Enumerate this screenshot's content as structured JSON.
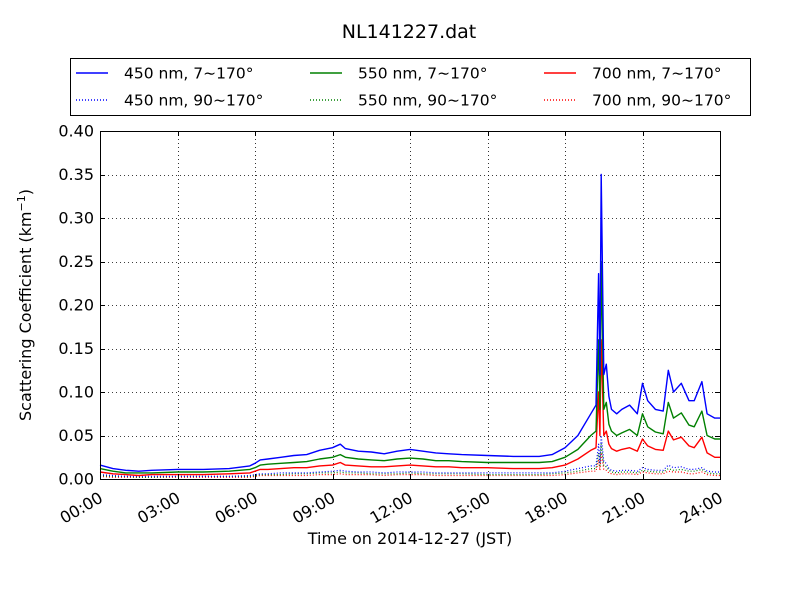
{
  "chart_data": {
    "type": "line",
    "title": "NL141227.dat",
    "xlabel": "Time on 2014-12-27 (JST)",
    "ylabel": "Scattering Coefficient (km",
    "ylabel_sup": "−1",
    "ylabel_close": ")",
    "xlim": [
      0,
      24
    ],
    "ylim": [
      0,
      0.4
    ],
    "grid": true,
    "legend_position": "top",
    "x_ticks": [
      {
        "value": 0,
        "label": "00:00"
      },
      {
        "value": 3,
        "label": "03:00"
      },
      {
        "value": 6,
        "label": "06:00"
      },
      {
        "value": 9,
        "label": "09:00"
      },
      {
        "value": 12,
        "label": "12:00"
      },
      {
        "value": 15,
        "label": "15:00"
      },
      {
        "value": 18,
        "label": "18:00"
      },
      {
        "value": 21,
        "label": "21:00"
      },
      {
        "value": 24,
        "label": "24:00"
      }
    ],
    "y_ticks": [
      {
        "value": 0,
        "label": "0.00"
      },
      {
        "value": 0.05,
        "label": "0.05"
      },
      {
        "value": 0.1,
        "label": "0.10"
      },
      {
        "value": 0.15,
        "label": "0.15"
      },
      {
        "value": 0.2,
        "label": "0.20"
      },
      {
        "value": 0.25,
        "label": "0.25"
      },
      {
        "value": 0.3,
        "label": "0.30"
      },
      {
        "value": 0.35,
        "label": "0.35"
      },
      {
        "value": 0.4,
        "label": "0.40"
      }
    ],
    "x": [
      0,
      0.5,
      1,
      1.5,
      2,
      3,
      4,
      5,
      5.8,
      6,
      6.2,
      6.5,
      7,
      7.5,
      8,
      8.5,
      9,
      9.3,
      9.5,
      10,
      10.5,
      11,
      11.5,
      12,
      12.5,
      13,
      13.5,
      14,
      15,
      16,
      17,
      17.5,
      18,
      18.5,
      19,
      19.2,
      19.3,
      19.35,
      19.4,
      19.5,
      19.6,
      19.7,
      19.8,
      20,
      20.2,
      20.5,
      20.8,
      21,
      21.2,
      21.5,
      21.8,
      22,
      22.2,
      22.5,
      22.8,
      23,
      23.3,
      23.5,
      23.8,
      24
    ],
    "series": [
      {
        "name": "450 nm, 7∼170°",
        "color": "#0000ff",
        "style": "solid",
        "values": [
          0.016,
          0.012,
          0.01,
          0.009,
          0.01,
          0.011,
          0.011,
          0.012,
          0.015,
          0.018,
          0.022,
          0.023,
          0.025,
          0.027,
          0.028,
          0.033,
          0.036,
          0.04,
          0.035,
          0.032,
          0.031,
          0.029,
          0.032,
          0.034,
          0.032,
          0.03,
          0.029,
          0.028,
          0.027,
          0.026,
          0.026,
          0.028,
          0.036,
          0.05,
          0.075,
          0.085,
          0.236,
          0.12,
          0.35,
          0.12,
          0.132,
          0.095,
          0.08,
          0.075,
          0.08,
          0.085,
          0.075,
          0.11,
          0.09,
          0.08,
          0.078,
          0.125,
          0.1,
          0.11,
          0.09,
          0.09,
          0.112,
          0.075,
          0.07,
          0.07
        ]
      },
      {
        "name": "450 nm, 90∼170°",
        "color": "#0000ff",
        "style": "dotted",
        "values": [
          0.005,
          0.004,
          0.003,
          0.003,
          0.003,
          0.003,
          0.003,
          0.003,
          0.004,
          0.005,
          0.006,
          0.006,
          0.007,
          0.007,
          0.007,
          0.008,
          0.009,
          0.01,
          0.009,
          0.008,
          0.008,
          0.007,
          0.008,
          0.008,
          0.008,
          0.007,
          0.007,
          0.007,
          0.007,
          0.007,
          0.007,
          0.007,
          0.009,
          0.012,
          0.015,
          0.015,
          0.04,
          0.018,
          0.05,
          0.02,
          0.018,
          0.012,
          0.01,
          0.009,
          0.01,
          0.01,
          0.009,
          0.013,
          0.011,
          0.01,
          0.01,
          0.016,
          0.013,
          0.014,
          0.011,
          0.011,
          0.013,
          0.009,
          0.008,
          0.008
        ]
      },
      {
        "name": "550 nm, 7∼170°",
        "color": "#008000",
        "style": "solid",
        "values": [
          0.012,
          0.009,
          0.007,
          0.007,
          0.007,
          0.008,
          0.008,
          0.009,
          0.011,
          0.013,
          0.016,
          0.017,
          0.018,
          0.019,
          0.02,
          0.023,
          0.025,
          0.028,
          0.025,
          0.023,
          0.022,
          0.021,
          0.023,
          0.024,
          0.023,
          0.021,
          0.021,
          0.02,
          0.019,
          0.019,
          0.019,
          0.02,
          0.025,
          0.034,
          0.05,
          0.055,
          0.16,
          0.08,
          0.25,
          0.08,
          0.088,
          0.063,
          0.055,
          0.05,
          0.053,
          0.057,
          0.05,
          0.075,
          0.06,
          0.054,
          0.052,
          0.088,
          0.07,
          0.076,
          0.062,
          0.06,
          0.078,
          0.05,
          0.046,
          0.046
        ]
      },
      {
        "name": "550 nm, 90∼170°",
        "color": "#008000",
        "style": "dotted",
        "values": [
          0.004,
          0.003,
          0.003,
          0.002,
          0.002,
          0.003,
          0.003,
          0.003,
          0.003,
          0.004,
          0.005,
          0.005,
          0.005,
          0.006,
          0.006,
          0.007,
          0.007,
          0.008,
          0.007,
          0.007,
          0.006,
          0.006,
          0.006,
          0.007,
          0.006,
          0.006,
          0.006,
          0.006,
          0.005,
          0.005,
          0.005,
          0.006,
          0.007,
          0.009,
          0.012,
          0.012,
          0.03,
          0.014,
          0.04,
          0.015,
          0.014,
          0.01,
          0.008,
          0.007,
          0.008,
          0.008,
          0.007,
          0.01,
          0.009,
          0.008,
          0.008,
          0.012,
          0.01,
          0.011,
          0.009,
          0.009,
          0.011,
          0.007,
          0.006,
          0.006
        ]
      },
      {
        "name": "700 nm, 7∼170°",
        "color": "#ff0000",
        "style": "solid",
        "values": [
          0.008,
          0.006,
          0.005,
          0.004,
          0.005,
          0.005,
          0.005,
          0.006,
          0.007,
          0.009,
          0.011,
          0.011,
          0.012,
          0.013,
          0.013,
          0.015,
          0.016,
          0.019,
          0.016,
          0.015,
          0.014,
          0.014,
          0.015,
          0.016,
          0.015,
          0.014,
          0.014,
          0.013,
          0.013,
          0.012,
          0.012,
          0.013,
          0.016,
          0.023,
          0.033,
          0.036,
          0.1,
          0.05,
          0.16,
          0.05,
          0.055,
          0.04,
          0.035,
          0.032,
          0.034,
          0.036,
          0.032,
          0.046,
          0.038,
          0.034,
          0.033,
          0.055,
          0.045,
          0.048,
          0.038,
          0.036,
          0.048,
          0.03,
          0.025,
          0.025
        ]
      },
      {
        "name": "700 nm, 90∼170°",
        "color": "#ff0000",
        "style": "dotted",
        "values": [
          0.003,
          0.002,
          0.002,
          0.002,
          0.002,
          0.002,
          0.002,
          0.002,
          0.002,
          0.003,
          0.004,
          0.004,
          0.004,
          0.004,
          0.004,
          0.005,
          0.005,
          0.006,
          0.005,
          0.005,
          0.005,
          0.004,
          0.005,
          0.005,
          0.005,
          0.004,
          0.004,
          0.004,
          0.004,
          0.004,
          0.004,
          0.004,
          0.005,
          0.007,
          0.009,
          0.009,
          0.022,
          0.01,
          0.03,
          0.011,
          0.01,
          0.007,
          0.006,
          0.005,
          0.006,
          0.006,
          0.005,
          0.008,
          0.007,
          0.006,
          0.006,
          0.009,
          0.008,
          0.008,
          0.006,
          0.006,
          0.008,
          0.005,
          0.004,
          0.004
        ]
      }
    ]
  }
}
